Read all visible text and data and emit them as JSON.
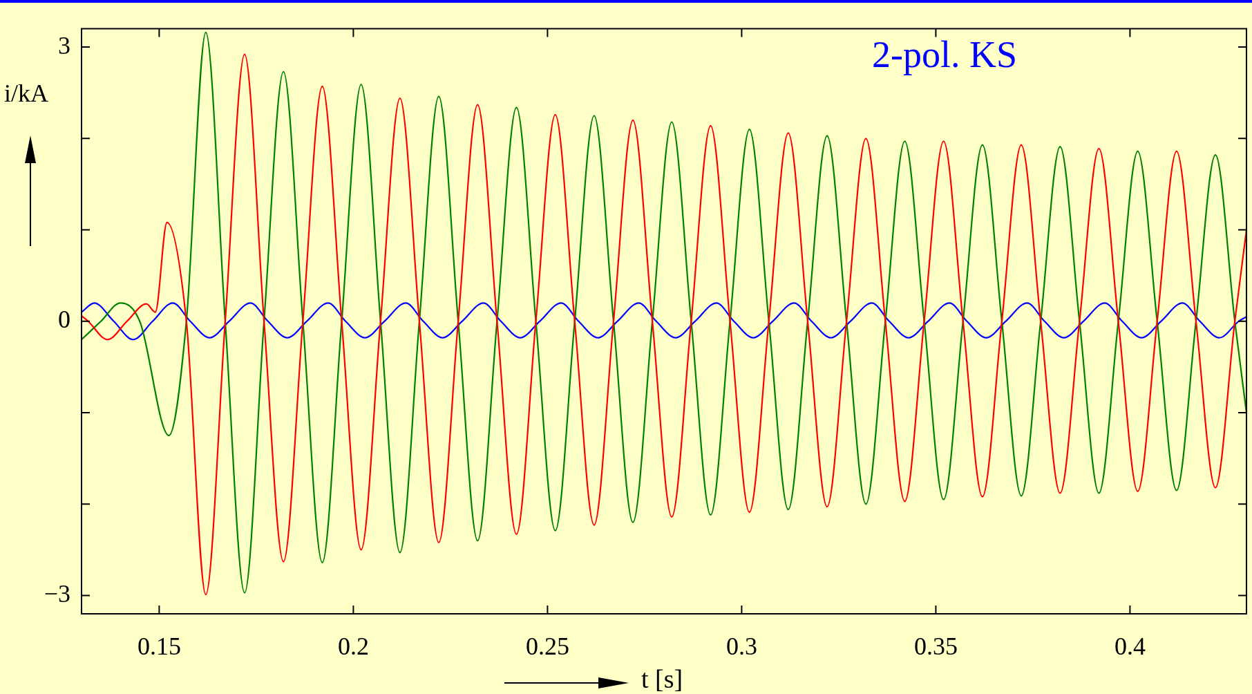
{
  "chart_data": {
    "type": "line",
    "xlabel": "t [s]",
    "ylabel": "i/kA",
    "annotations": [
      "2-pol. KS"
    ],
    "xlim": [
      0.13,
      0.43
    ],
    "ylim": [
      -3.2,
      3.2
    ],
    "xticks": [
      0.15,
      0.2,
      0.25,
      0.3,
      0.35,
      0.4
    ],
    "yticks": [
      {
        "value": -3,
        "label": "−3"
      },
      {
        "value": -2,
        "label": null
      },
      {
        "value": -1,
        "label": null
      },
      0,
      {
        "value": 1,
        "label": null
      },
      {
        "value": 2,
        "label": null
      },
      3
    ],
    "grid": false,
    "legend": false,
    "marker": "none",
    "line_style": "solid",
    "series": [
      {
        "color": "#ff0000",
        "x": [
          0.13,
          0.1317,
          0.1367,
          0.1417,
          0.1467,
          0.149,
          0.152,
          0.157,
          0.162,
          0.167,
          0.172,
          0.177,
          0.182,
          0.187,
          0.192,
          0.197,
          0.202,
          0.207,
          0.212,
          0.217,
          0.222,
          0.227,
          0.232,
          0.237,
          0.242,
          0.247,
          0.252,
          0.257,
          0.262,
          0.267,
          0.272,
          0.277,
          0.282,
          0.287,
          0.292,
          0.297,
          0.302,
          0.307,
          0.312,
          0.317,
          0.322,
          0.327,
          0.332,
          0.337,
          0.342,
          0.347,
          0.352,
          0.357,
          0.362,
          0.367,
          0.372,
          0.377,
          0.382,
          0.387,
          0.392,
          0.397,
          0.402,
          0.407,
          0.412,
          0.417,
          0.422,
          0.427,
          0.43
        ],
        "values": [
          0.06,
          0,
          -0.2,
          0,
          0.19,
          0.1,
          1.08,
          0,
          -2.99,
          0,
          2.92,
          0,
          -2.63,
          0,
          2.57,
          0,
          -2.5,
          0,
          2.44,
          0,
          -2.42,
          0,
          2.37,
          0,
          -2.33,
          0,
          2.26,
          0,
          -2.23,
          0,
          2.2,
          0,
          -2.14,
          0,
          2.14,
          0,
          -2.09,
          0,
          2.06,
          0,
          -2.03,
          0,
          2.0,
          0,
          -1.97,
          0,
          1.97,
          0,
          -1.92,
          0,
          1.93,
          0,
          -1.88,
          0,
          1.89,
          0,
          -1.86,
          0,
          1.86,
          0,
          -1.82,
          0,
          1.0
        ]
      },
      {
        "color": "#008000",
        "x": [
          0.13,
          0.135,
          0.14,
          0.145,
          0.1525,
          0.157,
          0.162,
          0.167,
          0.172,
          0.177,
          0.182,
          0.187,
          0.192,
          0.197,
          0.202,
          0.207,
          0.212,
          0.217,
          0.222,
          0.227,
          0.232,
          0.237,
          0.242,
          0.247,
          0.252,
          0.257,
          0.262,
          0.267,
          0.272,
          0.277,
          0.282,
          0.287,
          0.292,
          0.297,
          0.302,
          0.307,
          0.312,
          0.317,
          0.322,
          0.327,
          0.332,
          0.337,
          0.342,
          0.347,
          0.352,
          0.357,
          0.362,
          0.367,
          0.372,
          0.377,
          0.382,
          0.387,
          0.392,
          0.397,
          0.402,
          0.407,
          0.412,
          0.417,
          0.422,
          0.427,
          0.43
        ],
        "values": [
          -0.2,
          0,
          0.2,
          0,
          -1.25,
          0,
          3.16,
          0,
          -2.97,
          0,
          2.73,
          0,
          -2.64,
          0,
          2.59,
          0,
          -2.53,
          0,
          2.46,
          0,
          -2.4,
          0,
          2.34,
          0,
          -2.29,
          0,
          2.25,
          0,
          -2.2,
          0,
          2.18,
          0,
          -2.12,
          0,
          2.1,
          0,
          -2.06,
          0,
          2.03,
          0,
          -2.0,
          0,
          1.97,
          0,
          -1.95,
          0,
          1.93,
          0,
          -1.91,
          0,
          1.91,
          0,
          -1.88,
          0,
          1.86,
          0,
          -1.85,
          0,
          1.82,
          0,
          -1.0
        ]
      },
      {
        "color": "#0000ff",
        "x": [
          0.13,
          0.1333,
          0.1383,
          0.1433,
          0.1483,
          0.1535,
          0.158,
          0.163,
          0.168,
          0.1735,
          0.178,
          0.183,
          0.188,
          0.1935,
          0.198,
          0.203,
          0.208,
          0.2135,
          0.218,
          0.223,
          0.228,
          0.2335,
          0.238,
          0.243,
          0.248,
          0.2535,
          0.258,
          0.263,
          0.268,
          0.2735,
          0.278,
          0.283,
          0.288,
          0.2935,
          0.298,
          0.303,
          0.308,
          0.3135,
          0.318,
          0.323,
          0.328,
          0.3335,
          0.338,
          0.343,
          0.348,
          0.3535,
          0.358,
          0.363,
          0.368,
          0.3735,
          0.378,
          0.383,
          0.388,
          0.3935,
          0.398,
          0.403,
          0.408,
          0.4135,
          0.418,
          0.423,
          0.428,
          0.43
        ],
        "values": [
          0.1,
          0.2,
          0,
          -0.2,
          0,
          0.2,
          0,
          -0.18,
          0,
          0.2,
          0,
          -0.18,
          0,
          0.2,
          0,
          -0.18,
          0,
          0.2,
          0,
          -0.18,
          0,
          0.2,
          0,
          -0.18,
          0,
          0.2,
          0,
          -0.18,
          0,
          0.2,
          0,
          -0.18,
          0,
          0.2,
          0,
          -0.18,
          0,
          0.2,
          0,
          -0.18,
          0,
          0.2,
          0,
          -0.18,
          0,
          0.2,
          0,
          -0.18,
          0,
          0.2,
          0,
          -0.18,
          0,
          0.2,
          0,
          -0.18,
          0,
          0.2,
          0,
          -0.18,
          0,
          0.05
        ]
      }
    ]
  }
}
